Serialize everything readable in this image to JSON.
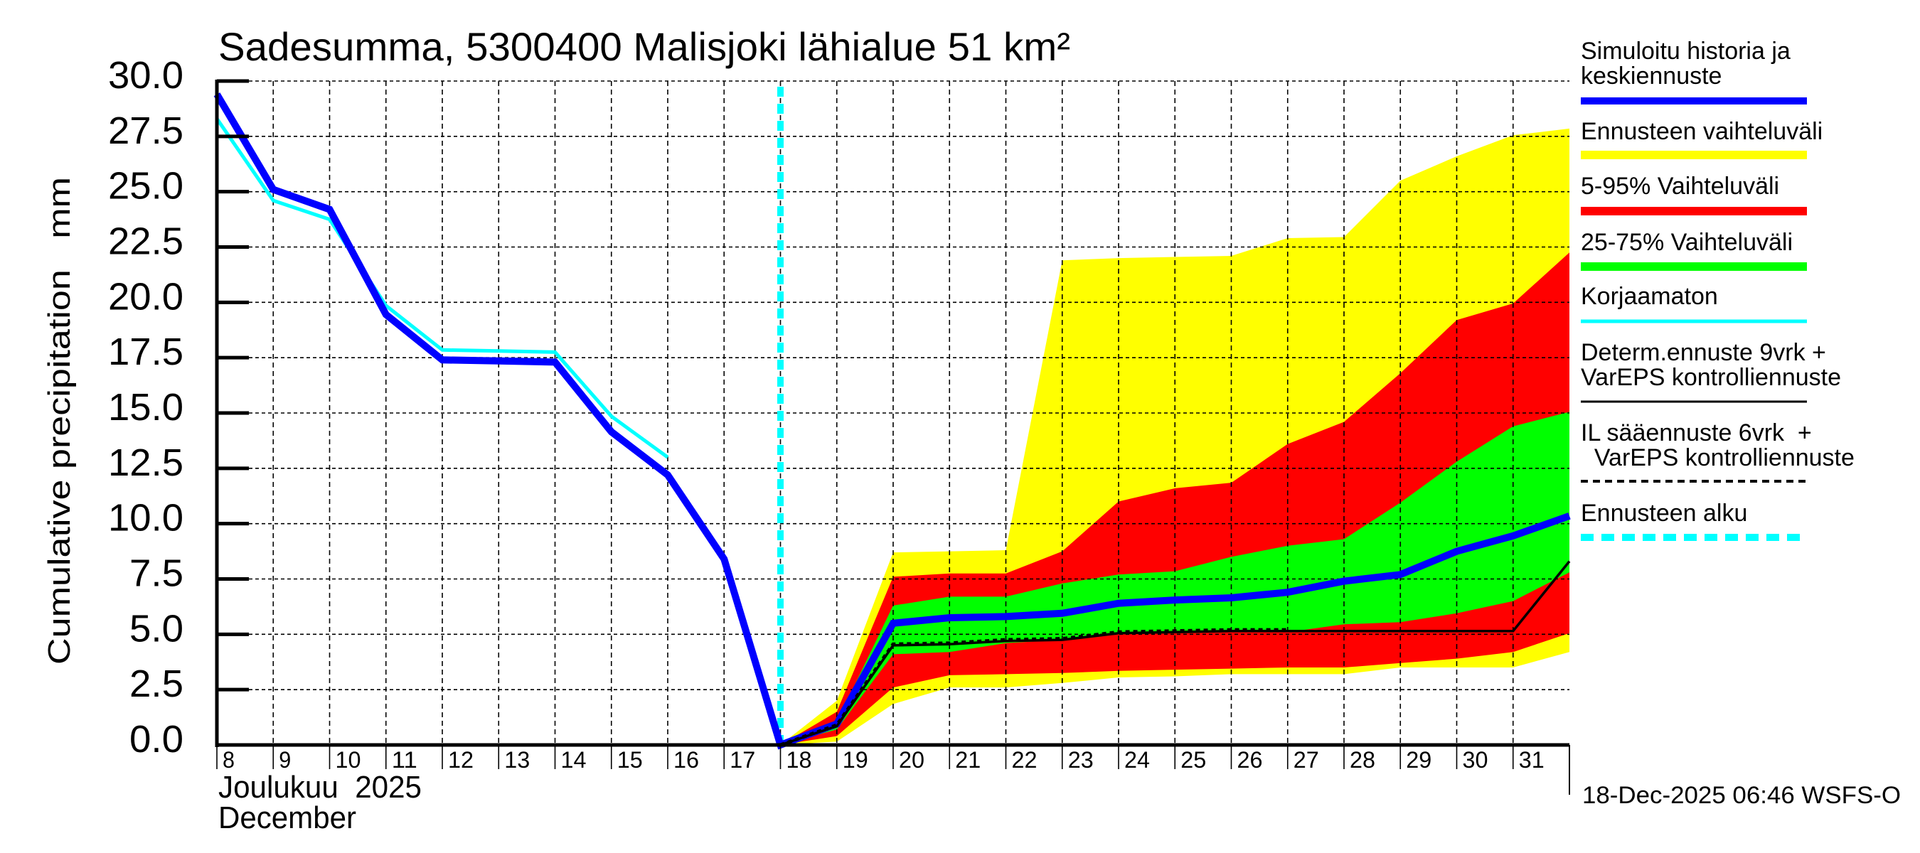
{
  "chart_data": {
    "type": "area",
    "title": "Sadesumma, 5300400 Malisjoki lähialue 51 km²",
    "ylabel": "Cumulative precipitation   mm",
    "xlabel_line1": "Joulukuu  2025",
    "xlabel_line2": "December",
    "timestamp": "18-Dec-2025 06:46 WSFS-O",
    "ylim": [
      0,
      30
    ],
    "xlim": [
      8,
      32
    ],
    "grid": true,
    "yticks": [
      "0.0",
      "2.5",
      "5.0",
      "7.5",
      "10.0",
      "12.5",
      "15.0",
      "17.5",
      "20.0",
      "22.5",
      "25.0",
      "27.5",
      "30.0"
    ],
    "ytick_values": [
      0,
      2.5,
      5,
      7.5,
      10,
      12.5,
      15,
      17.5,
      20,
      22.5,
      25,
      27.5,
      30
    ],
    "xticks": [
      "8",
      "9",
      "10",
      "11",
      "12",
      "13",
      "14",
      "15",
      "16",
      "17",
      "18",
      "19",
      "20",
      "21",
      "22",
      "23",
      "24",
      "25",
      "26",
      "27",
      "28",
      "29",
      "30",
      "31"
    ],
    "xtick_values": [
      8,
      9,
      10,
      11,
      12,
      13,
      14,
      15,
      16,
      17,
      18,
      19,
      20,
      21,
      22,
      23,
      24,
      25,
      26,
      27,
      28,
      29,
      30,
      31
    ],
    "forecast_start": 18,
    "bands": {
      "x": [
        18,
        19,
        20,
        21,
        22,
        23,
        24,
        25,
        26,
        27,
        28,
        29,
        30,
        31,
        32
      ],
      "full_range": {
        "upper": [
          0,
          2.0,
          8.7,
          8.75,
          8.8,
          21.9,
          22.0,
          22.05,
          22.1,
          22.9,
          22.95,
          25.5,
          26.6,
          27.55,
          27.85
        ],
        "lower": [
          0,
          0.15,
          1.85,
          2.6,
          2.6,
          2.8,
          3.05,
          3.1,
          3.2,
          3.2,
          3.2,
          3.5,
          3.5,
          3.5,
          4.2
        ]
      },
      "p5_95": {
        "upper": [
          0,
          1.5,
          7.6,
          7.75,
          7.75,
          8.75,
          11.0,
          11.6,
          11.85,
          13.6,
          14.6,
          16.8,
          19.2,
          19.95,
          22.25
        ],
        "lower": [
          0,
          0.4,
          2.6,
          3.15,
          3.2,
          3.25,
          3.35,
          3.4,
          3.45,
          3.5,
          3.5,
          3.7,
          3.9,
          4.2,
          5.05
        ]
      },
      "p25_75": {
        "upper": [
          0,
          1.05,
          6.3,
          6.7,
          6.7,
          7.3,
          7.7,
          7.85,
          8.5,
          9.0,
          9.3,
          10.95,
          12.8,
          14.4,
          15.05
        ],
        "lower": [
          0,
          0.7,
          4.1,
          4.2,
          4.6,
          4.75,
          5.0,
          5.05,
          5.1,
          5.1,
          5.45,
          5.55,
          5.95,
          6.5,
          7.8
        ]
      }
    },
    "series": [
      {
        "name": "Simuloitu historia ja keskiennuste",
        "color": "#0000ff",
        "x": [
          8,
          9,
          10,
          11,
          12,
          13,
          14,
          15,
          16,
          17,
          18,
          19,
          20,
          21,
          22,
          23,
          24,
          25,
          26,
          27,
          28,
          29,
          30,
          31,
          32
        ],
        "values": [
          29.4,
          25.1,
          24.2,
          19.45,
          17.4,
          17.35,
          17.3,
          14.15,
          12.2,
          8.4,
          0,
          0.95,
          5.5,
          5.75,
          5.8,
          5.95,
          6.4,
          6.55,
          6.65,
          6.9,
          7.4,
          7.7,
          8.75,
          9.45,
          10.35
        ]
      },
      {
        "name": "Korjaamaton",
        "color": "#00ffff",
        "x": [
          8,
          9,
          10,
          11,
          12,
          13,
          14,
          15,
          16
        ],
        "values": [
          28.3,
          24.6,
          23.75,
          19.85,
          17.85,
          17.8,
          17.75,
          14.85,
          13.0
        ]
      },
      {
        "name": "Determ.ennuste 9vrk + VarEPS kontrolliennuste",
        "color": "#000000",
        "x": [
          18,
          19,
          20,
          21,
          22,
          23,
          24,
          25,
          26,
          27,
          28,
          29,
          30,
          31,
          32
        ],
        "values": [
          0,
          0.85,
          4.5,
          4.55,
          4.7,
          4.75,
          5.05,
          5.1,
          5.15,
          5.15,
          5.15,
          5.15,
          5.15,
          5.15,
          8.3
        ]
      },
      {
        "name": "IL sääennuste 6vrk + VarEPS kontrolliennuste",
        "color": "#000000",
        "style": "dashed",
        "x": [
          18,
          19,
          20,
          21,
          22,
          23,
          24,
          25,
          26,
          27
        ],
        "values": [
          0,
          0.9,
          4.55,
          4.6,
          4.75,
          4.8,
          5.1,
          5.15,
          5.2,
          5.2
        ]
      }
    ],
    "legend": {
      "placement": "right",
      "entries": [
        {
          "lines": [
            "Simuloitu historia ja",
            "keskiennuste"
          ],
          "color": "#0000ff",
          "style": "thick"
        },
        {
          "lines": [
            "Ennusteen vaihteluväli"
          ],
          "color": "#ffff00",
          "style": "band"
        },
        {
          "lines": [
            "5-95% Vaihteluväli"
          ],
          "color": "#ff0000",
          "style": "band"
        },
        {
          "lines": [
            "25-75% Vaihteluväli"
          ],
          "color": "#00ff00",
          "style": "band"
        },
        {
          "lines": [
            "Korjaamaton"
          ],
          "color": "#00ffff",
          "style": "thin"
        },
        {
          "lines": [
            "Determ.ennuste 9vrk +",
            "VarEPS kontrolliennuste"
          ],
          "color": "#000000",
          "style": "solid"
        },
        {
          "lines": [
            "IL sääennuste 6vrk  +",
            "  VarEPS kontrolliennuste"
          ],
          "color": "#000000",
          "style": "dashed"
        },
        {
          "lines": [
            "Ennusteen alku"
          ],
          "color": "#00ffff",
          "style": "dotted"
        }
      ]
    }
  }
}
